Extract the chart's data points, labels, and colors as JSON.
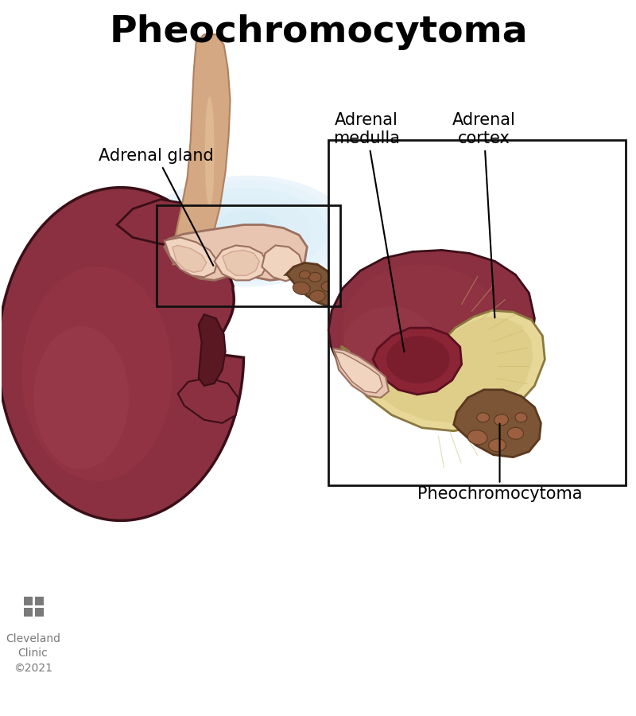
{
  "title": "Pheochromocytoma",
  "title_fontsize": 34,
  "title_fontweight": "bold",
  "bg_color": "#ffffff",
  "label_adrenal_gland": "Adrenal gland",
  "label_pheo": "Pheochromocytoma",
  "label_medulla": "Adrenal\nmedulla",
  "label_cortex": "Adrenal\ncortex",
  "label_cleveland": "Cleveland\nClinic\n©2021",
  "label_fontsize": 15,
  "kidney_color": "#8B3040",
  "kidney_outline": "#3a0f18",
  "adrenal_color": "#E8C5B0",
  "adrenal_outline": "#9B7060",
  "adrenal_shadow": "#D4A590",
  "tumor_color": "#7B5535",
  "tumor_dark": "#5a3820",
  "tube_color": "#D4A882",
  "tube_outline": "#B08060",
  "box_bg_left": "#cce0f0",
  "box_outline": "#111111",
  "cortex_color": "#E8D898",
  "cortex_inner": "#D4C078",
  "medulla_color": "#8B2535",
  "medulla_dark": "#5a1020",
  "gray_text": "#7a7a7a",
  "kidney_highlight": "#A84858"
}
